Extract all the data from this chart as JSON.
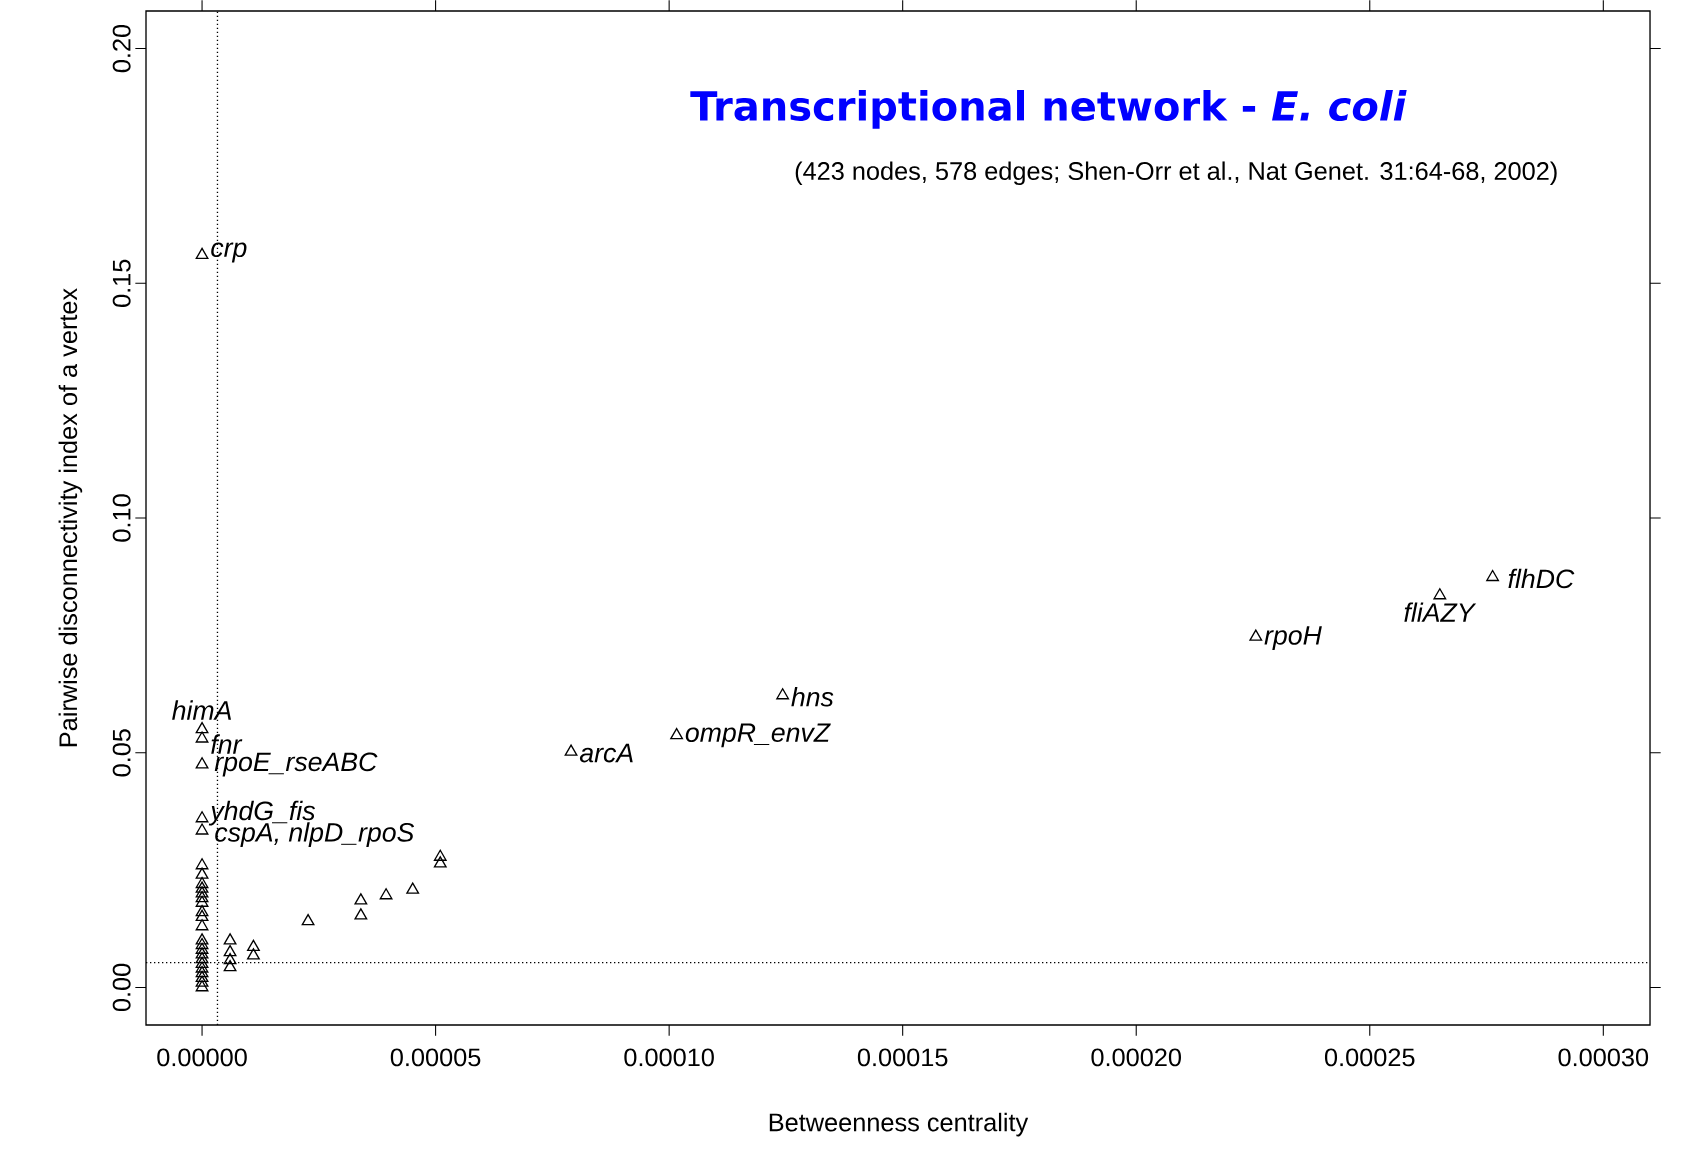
{
  "chart_data": {
    "type": "scatter",
    "title": "Transcriptional network - *E. coli*",
    "subtitle": "(423 nodes, 578 edges; Shen-Orr et al., Nat Genet. 31:64-68, 2002)",
    "xlabel": "Betweenness centrality",
    "ylabel": "Pairwise disconnectivity index of a vertex",
    "x": [
      0,
      0,
      0,
      0,
      0,
      0,
      0,
      0,
      0,
      0,
      0,
      0,
      0,
      0,
      0,
      0,
      0,
      0,
      0,
      0,
      0,
      0,
      0,
      0,
      0,
      0,
      0,
      6e-06,
      6e-06,
      6e-06,
      6e-06,
      1.1e-05,
      1.1e-05,
      2.27e-05,
      3.4e-05,
      3.4e-05,
      3.94e-05,
      4.51e-05,
      5.1e-05,
      5.1e-05,
      7.9e-05,
      0.0001016,
      0.0001243,
      0.0002256,
      0.000265,
      0.0002763
    ],
    "values": [
      0.156,
      0.055,
      0.053,
      0.0475,
      0.036,
      0.0334,
      0.026,
      0.024,
      0.022,
      0.021,
      0.02,
      0.019,
      0.018,
      0.016,
      0.015,
      0.013,
      0.01,
      0.009,
      0.008,
      0.007,
      0.006,
      0.005,
      0.004,
      0.003,
      0.002,
      0.001,
      0.0,
      0.01,
      0.0075,
      0.0058,
      0.0043,
      0.0086,
      0.0068,
      0.0141,
      0.0185,
      0.0153,
      0.0196,
      0.0208,
      0.0278,
      0.0264,
      0.0502,
      0.0537,
      0.0622,
      0.0747,
      0.0835,
      0.0874
    ],
    "color": "#000000",
    "marker": "triangle",
    "xlim": [
      -1.2e-05,
      0.00031
    ],
    "ylim": [
      -0.008,
      0.208
    ],
    "xticks": [
      {
        "value": 0,
        "label": "0.00000"
      },
      {
        "value": 5e-05,
        "label": "0.00005"
      },
      {
        "value": 0.0001,
        "label": "0.00010"
      },
      {
        "value": 0.00015,
        "label": "0.00015"
      },
      {
        "value": 0.0002,
        "label": "0.00020"
      },
      {
        "value": 0.00025,
        "label": "0.00025"
      },
      {
        "value": 0.0003,
        "label": "0.00030"
      }
    ],
    "yticks": [
      {
        "value": 0,
        "label": "0.00"
      },
      {
        "value": 0.05,
        "label": "0.05"
      },
      {
        "value": 0.1,
        "label": "0.10"
      },
      {
        "value": 0.15,
        "label": "0.15"
      },
      {
        "value": 0.2,
        "label": "0.20"
      }
    ],
    "ref_lines": [
      {
        "axis": "x",
        "value": 3.3e-06,
        "line_style": "dotted"
      },
      {
        "axis": "y",
        "value": 0.0053,
        "line_style": "dotted"
      }
    ],
    "annotations": [
      {
        "text": "*crp*",
        "x": 0,
        "y": 0.156
      },
      {
        "text": "*himA*",
        "x": 0,
        "y": 0.055
      },
      {
        "text": "*fnr*",
        "x": 0,
        "y": 0.053
      },
      {
        "text": "*rpoE_rseABC*",
        "x": 0,
        "y": 0.0475
      },
      {
        "text": "*yhdG_fis*",
        "x": 0,
        "y": 0.036
      },
      {
        "text": "*cspA, nlpD_rpoS*",
        "x": 0,
        "y": 0.0334
      },
      {
        "text": "*arcA*",
        "x": 7.9e-05,
        "y": 0.0502
      },
      {
        "text": "*ompR_envZ*",
        "x": 0.0001016,
        "y": 0.0537
      },
      {
        "text": "*hns*",
        "x": 0.0001243,
        "y": 0.0622
      },
      {
        "text": "*rpoH*",
        "x": 0.0002256,
        "y": 0.0747
      },
      {
        "text": "*fliAZY*",
        "x": 0.000265,
        "y": 0.0835
      },
      {
        "text": "*flhDC*",
        "x": 0.0002763,
        "y": 0.0874
      }
    ]
  }
}
